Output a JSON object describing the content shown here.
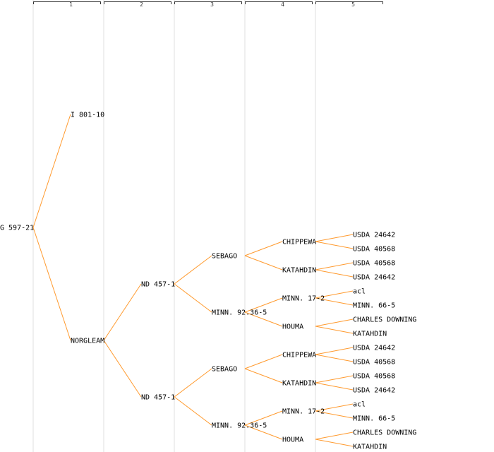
{
  "generations": [
    "1",
    "2",
    "3",
    "4",
    "5"
  ],
  "colors": {
    "edge": "#ff9a2e",
    "column_divider": "#efefef",
    "text": "#000000",
    "header": "#333333"
  },
  "tree": {
    "name": "G 597-21",
    "children": [
      {
        "name": "I 801-10"
      },
      {
        "name": "NORGLEAM",
        "children": [
          {
            "name": "ND 457-1",
            "children": [
              {
                "name": "SEBAGO",
                "children": [
                  {
                    "name": "CHIPPEWA",
                    "children": [
                      {
                        "name": "USDA 24642"
                      },
                      {
                        "name": "USDA 40568"
                      }
                    ]
                  },
                  {
                    "name": "KATAHDIN",
                    "children": [
                      {
                        "name": "USDA 40568"
                      },
                      {
                        "name": "USDA 24642"
                      }
                    ]
                  }
                ]
              },
              {
                "name": "MINN. 92.36-5",
                "children": [
                  {
                    "name": "MINN. 17-2",
                    "children": [
                      {
                        "name": "acl"
                      },
                      {
                        "name": "MINN. 66-5"
                      }
                    ]
                  },
                  {
                    "name": "HOUMA",
                    "children": [
                      {
                        "name": "CHARLES DOWNING"
                      },
                      {
                        "name": "KATAHDIN"
                      }
                    ]
                  }
                ]
              }
            ]
          },
          {
            "name": "ND 457-1",
            "children": [
              {
                "name": "SEBAGO",
                "children": [
                  {
                    "name": "CHIPPEWA",
                    "children": [
                      {
                        "name": "USDA 24642"
                      },
                      {
                        "name": "USDA 40568"
                      }
                    ]
                  },
                  {
                    "name": "KATAHDIN",
                    "children": [
                      {
                        "name": "USDA 40568"
                      },
                      {
                        "name": "USDA 24642"
                      }
                    ]
                  }
                ]
              },
              {
                "name": "MINN. 92.36-5",
                "children": [
                  {
                    "name": "MINN. 17-2",
                    "children": [
                      {
                        "name": "acl"
                      },
                      {
                        "name": "MINN. 66-5"
                      }
                    ]
                  },
                  {
                    "name": "HOUMA",
                    "children": [
                      {
                        "name": "CHARLES DOWNING"
                      },
                      {
                        "name": "KATAHDIN"
                      }
                    ]
                  }
                ]
              }
            ]
          }
        ]
      }
    ]
  }
}
